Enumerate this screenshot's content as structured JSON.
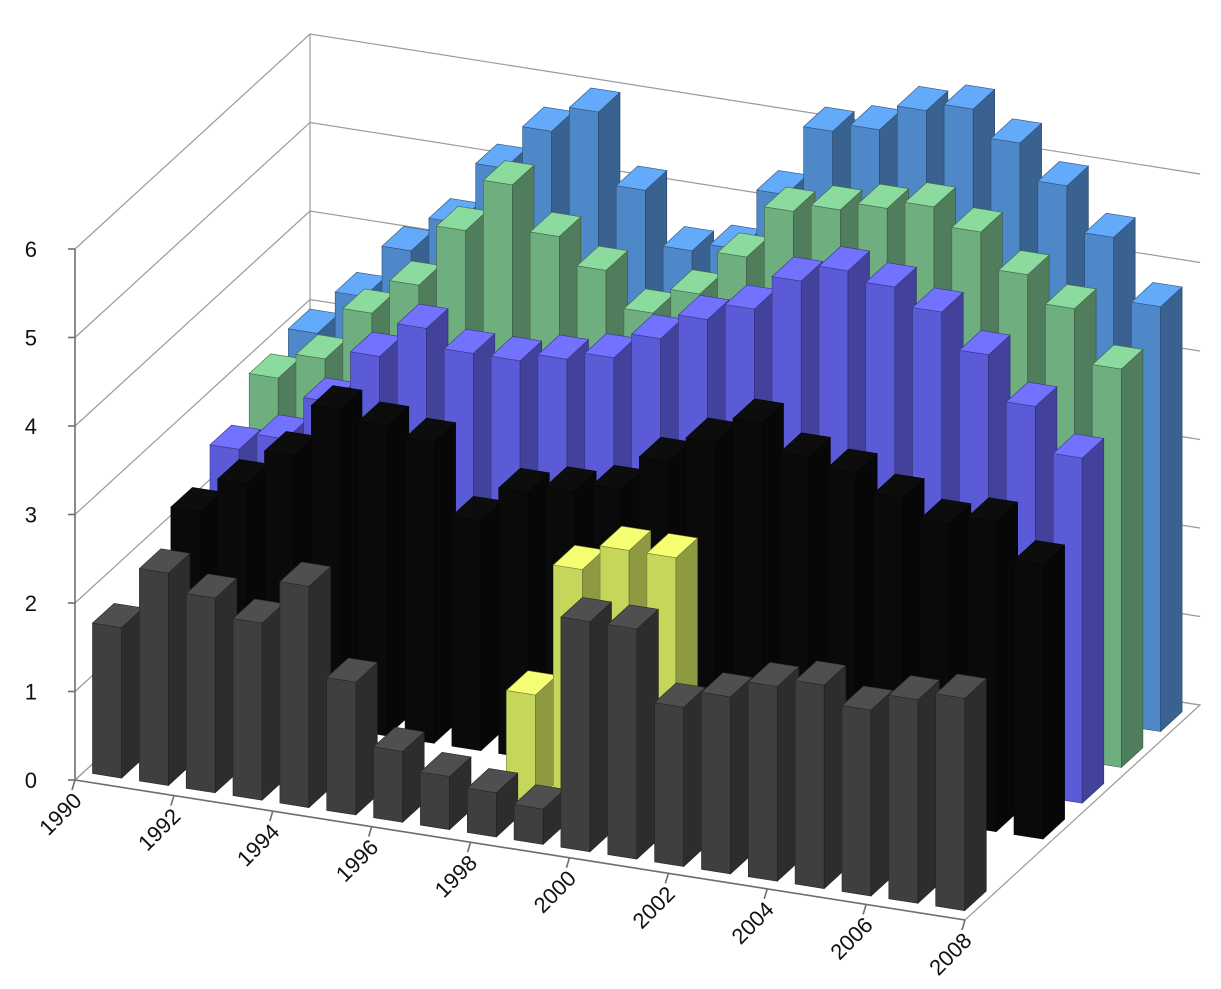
{
  "chart_data": {
    "type": "bar",
    "subtype": "3d-column",
    "title": "",
    "xlabel": "",
    "ylabel": "",
    "zlim": [
      0,
      6
    ],
    "z_ticks": [
      "0",
      "1",
      "2",
      "3",
      "4",
      "5",
      "6"
    ],
    "x_ticks": [
      "1990",
      "1992",
      "1994",
      "1996",
      "1998",
      "2000",
      "2002",
      "2004",
      "2006",
      "2008"
    ],
    "grid": true,
    "legend": "none",
    "categories": [
      "1990",
      "1991",
      "1992",
      "1993",
      "1994",
      "1995",
      "1996",
      "1997",
      "1998",
      "1999",
      "2000",
      "2001",
      "2002",
      "2003",
      "2004",
      "2005",
      "2006",
      "2007",
      "2008"
    ],
    "palette": {
      "dark": "#3f3f3f",
      "black": "#0a0a0a",
      "yellow": "#c5d65a",
      "blue": "#4f88c8",
      "green": "#6fae7e",
      "red": "#b4473f",
      "violet": "#5b5bd8",
      "pink": "#c07abf"
    },
    "series": [
      {
        "color": "dark",
        "values": [
          1.7,
          2.4,
          2.2,
          2.0,
          2.5,
          1.5,
          0.8,
          0.6,
          0.5,
          0.4,
          2.6,
          2.6,
          1.8,
          2.0,
          2.2,
          2.3,
          2.1,
          2.3,
          2.4
        ]
      },
      {
        "color": "yellow",
        "values": [
          0.0,
          0.0,
          0.0,
          0.0,
          0.0,
          0.0,
          0.0,
          0.0,
          1.2,
          2.7,
          3.0,
          3.0,
          0.9,
          0.8,
          0.0,
          0.0,
          0.6,
          1.0,
          0.0
        ]
      },
      {
        "color": "black",
        "values": [
          2.2,
          2.6,
          3.0,
          3.6,
          3.5,
          3.4,
          2.6,
          3.0,
          3.1,
          3.2,
          3.6,
          3.9,
          4.2,
          3.9,
          3.8,
          3.6,
          3.4,
          3.5,
          3.1
        ]
      },
      {
        "color": "violet",
        "values": [
          2.5,
          2.7,
          3.2,
          3.8,
          4.2,
          4.0,
          4.0,
          4.1,
          4.2,
          4.5,
          4.8,
          5.0,
          5.4,
          5.6,
          5.5,
          5.3,
          4.9,
          4.4,
          3.9
        ]
      },
      {
        "color": "green",
        "values": [
          2.9,
          3.2,
          3.8,
          4.2,
          4.9,
          5.5,
          5.0,
          4.7,
          4.3,
          4.6,
          5.1,
          5.7,
          5.8,
          5.9,
          6.0,
          5.8,
          5.4,
          5.1,
          4.5
        ]
      },
      {
        "color": "blue",
        "values": [
          3.0,
          3.5,
          4.1,
          4.5,
          5.2,
          5.7,
          6.0,
          5.2,
          4.6,
          4.7,
          5.4,
          6.2,
          6.3,
          6.6,
          6.7,
          6.4,
          6.0,
          5.5,
          4.8
        ]
      }
    ]
  }
}
